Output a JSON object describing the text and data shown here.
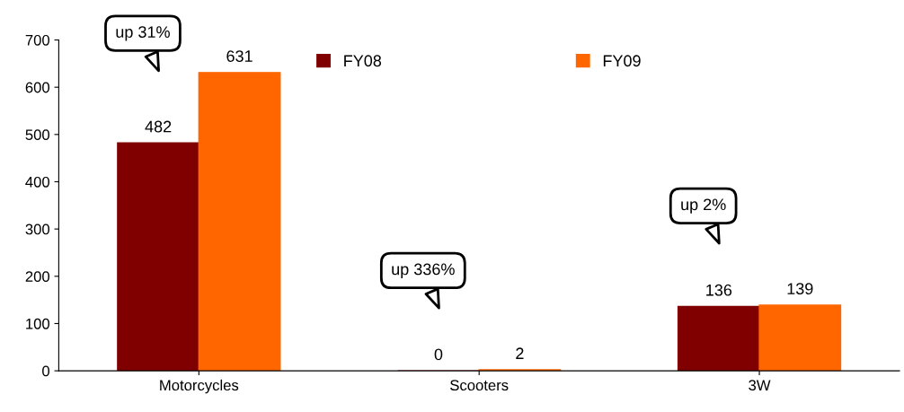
{
  "chart_data": {
    "type": "bar",
    "categories": [
      "Motorcycles",
      "Scooters",
      "3W"
    ],
    "series": [
      {
        "name": "FY08",
        "color": "#800000",
        "values": [
          482,
          0,
          136
        ]
      },
      {
        "name": "FY09",
        "color": "#ff6600",
        "values": [
          631,
          2,
          139
        ]
      }
    ],
    "ylim": [
      0,
      700
    ],
    "yticks": [
      0,
      100,
      200,
      300,
      400,
      500,
      600,
      700
    ],
    "data_labels": true,
    "legend": "top",
    "grid": false,
    "annotations": [
      "up 31%",
      "up 336%",
      "up 2%"
    ]
  }
}
